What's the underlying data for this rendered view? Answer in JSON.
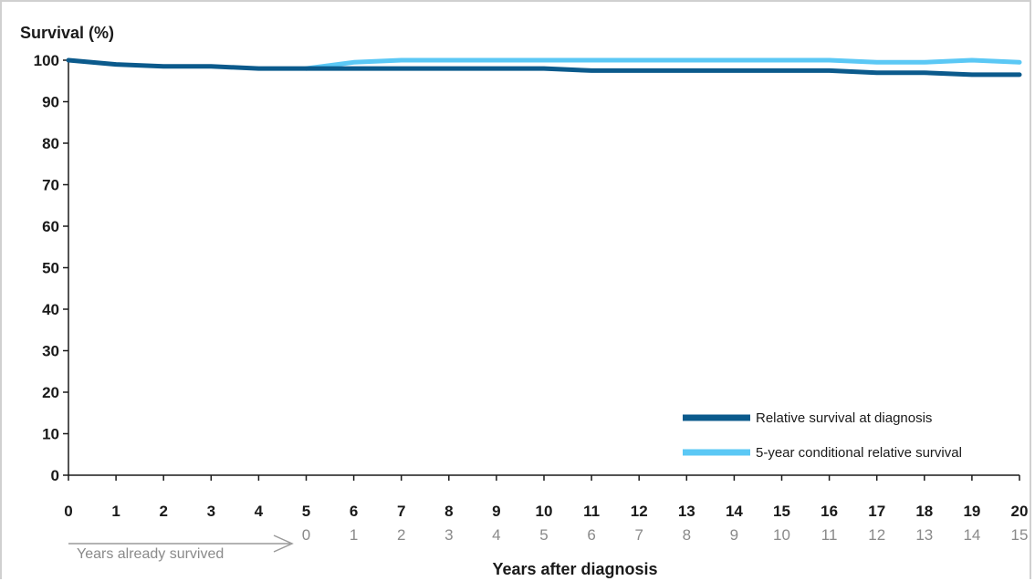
{
  "chart_data": {
    "type": "line",
    "ylabel": "Survival (%)",
    "xlabel": "Years after diagnosis",
    "ylim": [
      0,
      100
    ],
    "xlim": [
      0,
      20
    ],
    "y_ticks": [
      "0",
      "10",
      "20",
      "30",
      "40",
      "50",
      "60",
      "70",
      "80",
      "90",
      "100"
    ],
    "x_ticks": [
      "0",
      "1",
      "2",
      "3",
      "4",
      "5",
      "6",
      "7",
      "8",
      "9",
      "10",
      "11",
      "12",
      "13",
      "14",
      "15",
      "16",
      "17",
      "18",
      "19",
      "20"
    ],
    "secondary_x_ticks": [
      "0",
      "1",
      "2",
      "3",
      "4",
      "5",
      "6",
      "7",
      "8",
      "9",
      "10",
      "11",
      "12",
      "13",
      "14",
      "15"
    ],
    "secondary_axis_note": "Years already survived",
    "legend_position": "bottom-right",
    "grid": false,
    "series": [
      {
        "name": "Relative survival at diagnosis",
        "color": "#0b5a8c",
        "x": [
          0,
          1,
          2,
          3,
          4,
          5,
          6,
          7,
          8,
          9,
          10,
          11,
          12,
          13,
          14,
          15,
          16,
          17,
          18,
          19,
          20
        ],
        "values": [
          100,
          99,
          98.5,
          98.5,
          98,
          98,
          98,
          98,
          98,
          98,
          98,
          97.5,
          97.5,
          97.5,
          97.5,
          97.5,
          97.5,
          97,
          97,
          96.5,
          96.5
        ]
      },
      {
        "name": "5-year conditional relative survival",
        "color": "#5bc8f5",
        "x": [
          5,
          6,
          7,
          8,
          9,
          10,
          11,
          12,
          13,
          14,
          15,
          16,
          17,
          18,
          19,
          20
        ],
        "values": [
          98,
          99.5,
          100,
          100,
          100,
          100,
          100,
          100,
          100,
          100,
          100,
          100,
          99.5,
          99.5,
          100,
          99.5
        ]
      }
    ]
  }
}
